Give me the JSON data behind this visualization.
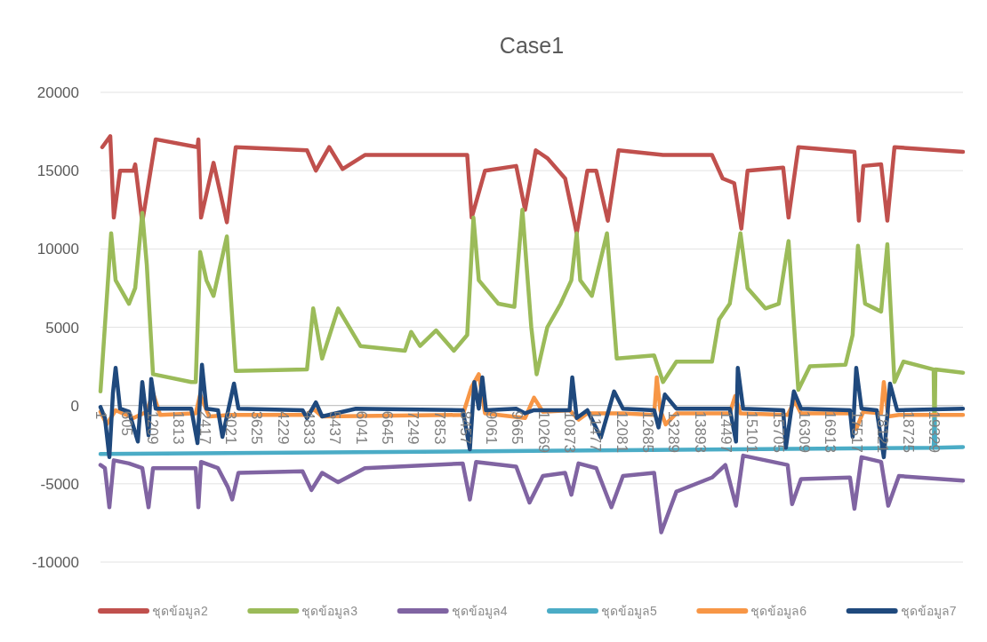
{
  "chart_data": {
    "type": "line",
    "title": "Case1",
    "xlim": [
      1,
      19990
    ],
    "xticks": [
      1,
      605,
      1209,
      1813,
      2417,
      3021,
      3625,
      4229,
      4833,
      5437,
      6041,
      6645,
      7249,
      7853,
      8457,
      9061,
      9665,
      10269,
      10873,
      11477,
      12081,
      12685,
      13289,
      13893,
      14497,
      15101,
      15705,
      16309,
      16913,
      17517,
      18121,
      18725,
      19329
    ],
    "ylim": [
      -10000,
      20000
    ],
    "yticks": [
      -10000,
      -5000,
      0,
      5000,
      10000,
      15000,
      20000
    ],
    "grid": "y",
    "legend": "bottom",
    "marker": "none",
    "line_style": "solid",
    "series": [
      {
        "name": "ชุดข้อมูล2",
        "color": "#c0504d",
        "x": [
          42,
          228,
          310,
          455,
          764,
          806,
          970,
          1280,
          2250,
          2270,
          2332,
          2621,
          2930,
          3136,
          4787,
          4993,
          5303,
          5612,
          6128,
          8500,
          8604,
          8913,
          9635,
          9841,
          10089,
          10357,
          10770,
          11038,
          11285,
          11491,
          11759,
          12007,
          13038,
          14173,
          14420,
          14688,
          14853,
          14998,
          15823,
          15947,
          16174,
          17474,
          17577,
          17680,
          18093,
          18237,
          18402,
          19990
        ],
        "values": [
          16500,
          17200,
          12000,
          15000,
          15000,
          15400,
          11700,
          17000,
          16500,
          17000,
          12000,
          15500,
          11700,
          16500,
          16300,
          15000,
          16500,
          15100,
          16000,
          16000,
          12000,
          15000,
          15300,
          12500,
          16300,
          15800,
          14500,
          11000,
          15000,
          15000,
          11800,
          16300,
          16000,
          16000,
          14500,
          14200,
          11300,
          15000,
          15200,
          12000,
          16500,
          16200,
          11800,
          15300,
          15400,
          11800,
          16500,
          16200
        ]
      },
      {
        "name": "ชุดข้อมูล3",
        "color": "#9bbb59",
        "x": [
          1,
          249,
          352,
          661,
          806,
          970,
          1074,
          1218,
          2105,
          2208,
          2311,
          2456,
          2621,
          2930,
          3136,
          4787,
          4931,
          5138,
          5509,
          6025,
          7056,
          7201,
          7407,
          7778,
          8191,
          8500,
          8645,
          8769,
          9222,
          9593,
          9779,
          9985,
          10109,
          10357,
          10666,
          10914,
          11038,
          11120,
          11389,
          11739,
          11966,
          12832,
          13038,
          13348,
          14173,
          14338,
          14585,
          14833,
          14998,
          15410,
          15720,
          15947,
          16174,
          16442,
          17267,
          17432,
          17556,
          17721,
          18093,
          18237,
          18402,
          18609,
          19310,
          19330,
          19350,
          19990
        ],
        "values": [
          900,
          11000,
          8000,
          6500,
          7500,
          12300,
          9000,
          2000,
          1500,
          1500,
          9800,
          8000,
          7000,
          10800,
          2200,
          2300,
          6200,
          3000,
          6200,
          3800,
          3500,
          4700,
          3800,
          4800,
          3500,
          4500,
          12000,
          8000,
          6500,
          6300,
          12500,
          5000,
          2000,
          5000,
          6500,
          8000,
          11000,
          8000,
          7000,
          11000,
          3000,
          3200,
          1500,
          2800,
          2800,
          5500,
          6500,
          11000,
          7500,
          6200,
          6500,
          10500,
          1000,
          2500,
          2600,
          4500,
          10200,
          6500,
          6000,
          10300,
          1500,
          2800,
          2300,
          -2300,
          2300,
          2100
        ]
      },
      {
        "name": "ชุดข้อมูล4",
        "color": "#8064a2",
        "x": [
          1,
          104,
          207,
          310,
          661,
          970,
          1115,
          1218,
          2208,
          2270,
          2332,
          2724,
          2951,
          3054,
          3198,
          4684,
          4890,
          5138,
          5509,
          6128,
          8397,
          8562,
          8707,
          9635,
          9944,
          10254,
          10770,
          10914,
          11079,
          11491,
          11842,
          12110,
          12832,
          12997,
          13348,
          14173,
          14483,
          14730,
          14895,
          15410,
          15926,
          16030,
          16236,
          17371,
          17474,
          17639,
          18093,
          18258,
          18505,
          19990
        ],
        "values": [
          -3800,
          -4000,
          -6500,
          -3500,
          -3700,
          -4000,
          -6500,
          -4000,
          -4000,
          -6500,
          -3600,
          -4000,
          -5200,
          -6000,
          -4300,
          -4200,
          -5400,
          -4300,
          -4900,
          -4000,
          -3700,
          -6000,
          -3600,
          -3900,
          -6200,
          -4500,
          -4300,
          -5700,
          -3700,
          -4000,
          -6500,
          -4500,
          -4300,
          -8100,
          -5500,
          -4600,
          -3800,
          -6400,
          -3200,
          -3500,
          -3800,
          -6300,
          -4700,
          -4600,
          -6600,
          -3300,
          -3600,
          -6400,
          -4500,
          -4800
        ]
      },
      {
        "name": "ชุดข้อมูล5",
        "color": "#4bacc6",
        "x": [
          1,
          10000,
          19310,
          19330,
          19350,
          19990
        ],
        "values": [
          -3100,
          -2900,
          -2700,
          -700,
          -2700,
          -2650
        ]
      },
      {
        "name": "ชุดข้อมูล6",
        "color": "#f79646",
        "x": [
          1,
          145,
          352,
          764,
          1074,
          1218,
          1383,
          2208,
          2311,
          2518,
          3033,
          4787,
          4931,
          5138,
          8397,
          8604,
          8769,
          8913,
          9841,
          10048,
          10254,
          10873,
          11079,
          11285,
          12110,
          12832,
          12894,
          12976,
          13100,
          13348,
          14585,
          14709,
          14833,
          15926,
          16092,
          16236,
          17371,
          17516,
          17680,
          18093,
          18155,
          18258,
          18505,
          19990
        ],
        "values": [
          -400,
          -1200,
          -300,
          -800,
          -400,
          800,
          -600,
          -500,
          700,
          -700,
          -600,
          -600,
          -200,
          -700,
          -600,
          1200,
          2000,
          -500,
          -800,
          500,
          -400,
          -300,
          -900,
          -500,
          -500,
          -600,
          1800,
          -300,
          -1200,
          -500,
          -500,
          600,
          -500,
          -600,
          300,
          -500,
          -500,
          -1500,
          -400,
          -500,
          1500,
          -700,
          -600,
          -600
        ]
      },
      {
        "name": "ชุดข้อมูล7",
        "color": "#1f497d",
        "x": [
          1,
          104,
          207,
          290,
          352,
          455,
          661,
          867,
          970,
          1115,
          1177,
          1280,
          2105,
          2250,
          2353,
          2456,
          2724,
          2827,
          3095,
          3198,
          4684,
          4787,
          4993,
          5138,
          5922,
          8397,
          8562,
          8665,
          8769,
          8851,
          8934,
          9635,
          9841,
          10048,
          10873,
          10935,
          11038,
          11285,
          11595,
          11904,
          12110,
          12832,
          12935,
          13080,
          13348,
          14585,
          14730,
          14771,
          14895,
          15823,
          15885,
          16071,
          16236,
          17371,
          17433,
          17516,
          17639,
          17990,
          18155,
          18299,
          18464,
          19990
        ],
        "values": [
          -100,
          -800,
          -3300,
          800,
          2400,
          -200,
          -400,
          -2300,
          1500,
          -1900,
          1700,
          -200,
          -200,
          -2400,
          2600,
          -200,
          -300,
          -2000,
          1400,
          -200,
          -300,
          -800,
          200,
          -700,
          -200,
          -300,
          -2800,
          1500,
          -200,
          1800,
          -300,
          -200,
          -500,
          -300,
          -300,
          1800,
          -800,
          -300,
          -2050,
          900,
          -200,
          -300,
          -1400,
          700,
          -200,
          -200,
          -2300,
          2400,
          -200,
          -300,
          -2700,
          900,
          -200,
          -300,
          -2000,
          2400,
          -200,
          -300,
          -3300,
          1400,
          -300,
          -200
        ]
      }
    ]
  }
}
